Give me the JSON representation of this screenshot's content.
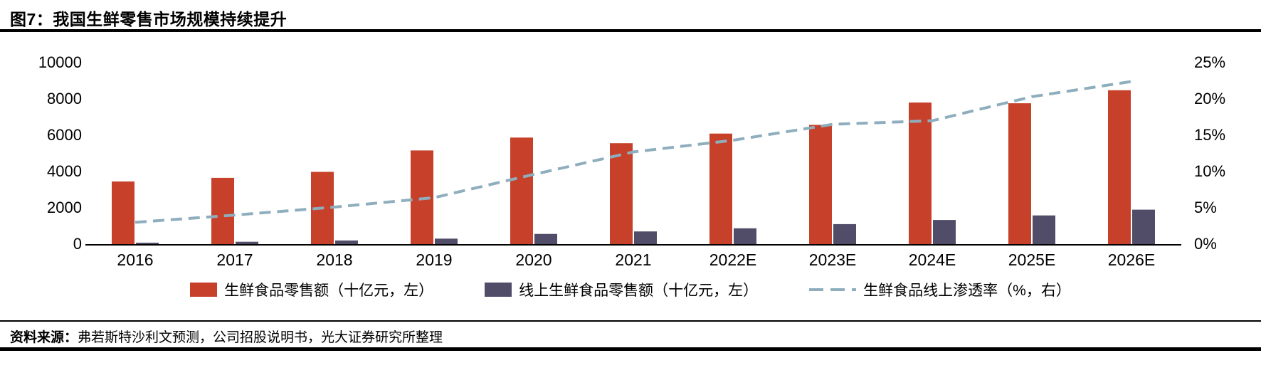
{
  "header": {
    "title": "图7：我国生鲜零售市场规模持续提升"
  },
  "source": {
    "label": "资料来源：",
    "text": "弗若斯特沙利文预测，公司招股说明书，光大证券研究所整理"
  },
  "colors": {
    "fresh_bar": "#C6402A",
    "online_bar": "#514C68",
    "penetration_line": "#8FAEBD",
    "rule": "#000000"
  },
  "chart_data": {
    "type": "bar",
    "subtype": "combo-bar-line",
    "title": "图7：我国生鲜零售市场规模持续提升",
    "categories": [
      "2016",
      "2017",
      "2018",
      "2019",
      "2020",
      "2021",
      "2022E",
      "2023E",
      "2024E",
      "2025E",
      "2026E"
    ],
    "series": [
      {
        "name": "生鲜食品零售额（十亿元，左）",
        "type": "bar",
        "axis": "left",
        "color": "#C6402A",
        "values": [
          3450,
          3650,
          3980,
          5160,
          5870,
          5560,
          6090,
          6570,
          7800,
          7760,
          8480
        ]
      },
      {
        "name": "线上生鲜食品零售额（十亿元，左）",
        "type": "bar",
        "axis": "left",
        "color": "#514C68",
        "values": [
          80,
          130,
          200,
          300,
          560,
          700,
          870,
          1100,
          1330,
          1580,
          1900
        ]
      },
      {
        "name": "生鲜食品线上渗透率（%，右）",
        "type": "line",
        "dashed": true,
        "axis": "right",
        "color": "#8FAEBD",
        "values": [
          3.0,
          4.0,
          5.1,
          6.4,
          9.6,
          12.7,
          14.3,
          16.5,
          17.0,
          20.3,
          22.4
        ]
      }
    ],
    "left_axis": {
      "min": 0,
      "max": 10000,
      "ticks": [
        0,
        2000,
        4000,
        6000,
        8000,
        10000
      ]
    },
    "right_axis": {
      "min": 0,
      "max": 25,
      "tick_labels": [
        "0%",
        "5%",
        "10%",
        "15%",
        "20%",
        "25%"
      ],
      "tick_values": [
        0,
        5,
        10,
        15,
        20,
        25
      ]
    },
    "grid": false,
    "legend_position": "bottom"
  }
}
